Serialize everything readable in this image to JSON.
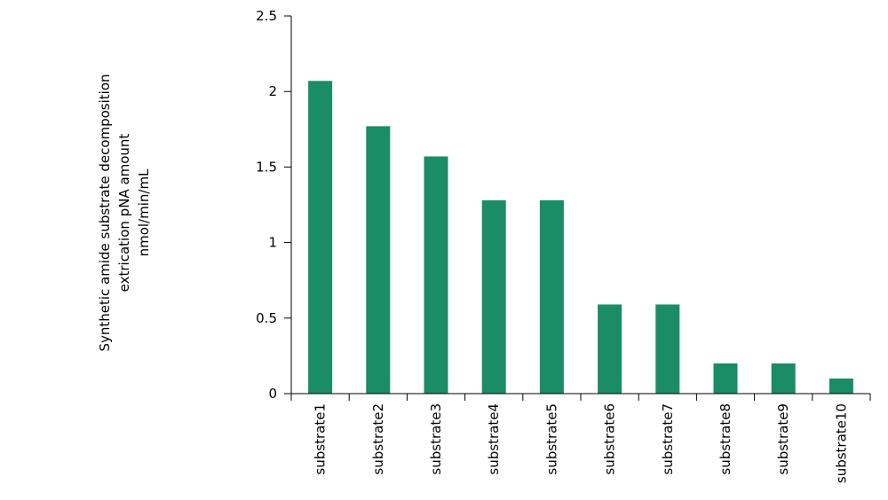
{
  "chart_data": {
    "type": "bar",
    "title": "",
    "xlabel": "",
    "ylabel": [
      "Synthetic amide substrate decomposition",
      "extrication pNA amount",
      "nmol/min/mL"
    ],
    "categories": [
      "substrate1",
      "substrate2",
      "substrate3",
      "substrate4",
      "substrate5",
      "substrate6",
      "substrate7",
      "substrate8",
      "substrate9",
      "substrate10"
    ],
    "values": [
      2.07,
      1.77,
      1.57,
      1.28,
      1.28,
      0.59,
      0.59,
      0.2,
      0.2,
      0.1
    ],
    "ylim": [
      0,
      2.5
    ],
    "yticks": [
      {
        "value": 0,
        "label": "0"
      },
      {
        "value": 0.5,
        "label": "0.5"
      },
      {
        "value": 1,
        "label": "1"
      },
      {
        "value": 1.5,
        "label": "1.5"
      },
      {
        "value": 2,
        "label": "2"
      },
      {
        "value": 2.5,
        "label": "2.5"
      }
    ],
    "bar_color": "#1a8c66",
    "grid": false,
    "legend": "none"
  }
}
